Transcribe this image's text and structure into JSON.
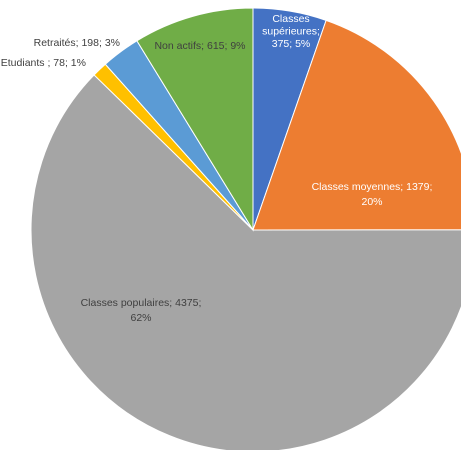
{
  "chart_data": {
    "type": "pie",
    "title": "",
    "slices": [
      {
        "category": "Classes supérieures",
        "value": 375,
        "percent": "5%",
        "label_lines": [
          "Classes",
          "supérieures;",
          "375; 5%"
        ],
        "color": "#4472c4",
        "label_color": "#ffffff"
      },
      {
        "category": "Classes moyennes",
        "value": 1379,
        "percent": "20%",
        "label_lines": [
          "Classes moyennes; 1379;",
          "20%"
        ],
        "color": "#ed7d31",
        "label_color": "#ffffff"
      },
      {
        "category": "Classes populaires",
        "value": 4375,
        "percent": "62%",
        "label_lines": [
          "Classes populaires; 4375;",
          "62%"
        ],
        "color": "#a5a5a5",
        "label_color": "#404040"
      },
      {
        "category": "Etudiants",
        "value": 78,
        "percent": "1%",
        "label_lines": [
          "Etudiants ; 78; 1%"
        ],
        "color": "#ffc000",
        "label_color": "#404040"
      },
      {
        "category": "Retraités",
        "value": 198,
        "percent": "3%",
        "label_lines": [
          "Retraités; 198; 3%"
        ],
        "color": "#5b9bd5",
        "label_color": "#404040"
      },
      {
        "category": "Non actifs",
        "value": 615,
        "percent": "9%",
        "label_lines": [
          "Non actifs; 615; 9%"
        ],
        "color": "#70ad47",
        "label_color": "#404040"
      }
    ]
  }
}
